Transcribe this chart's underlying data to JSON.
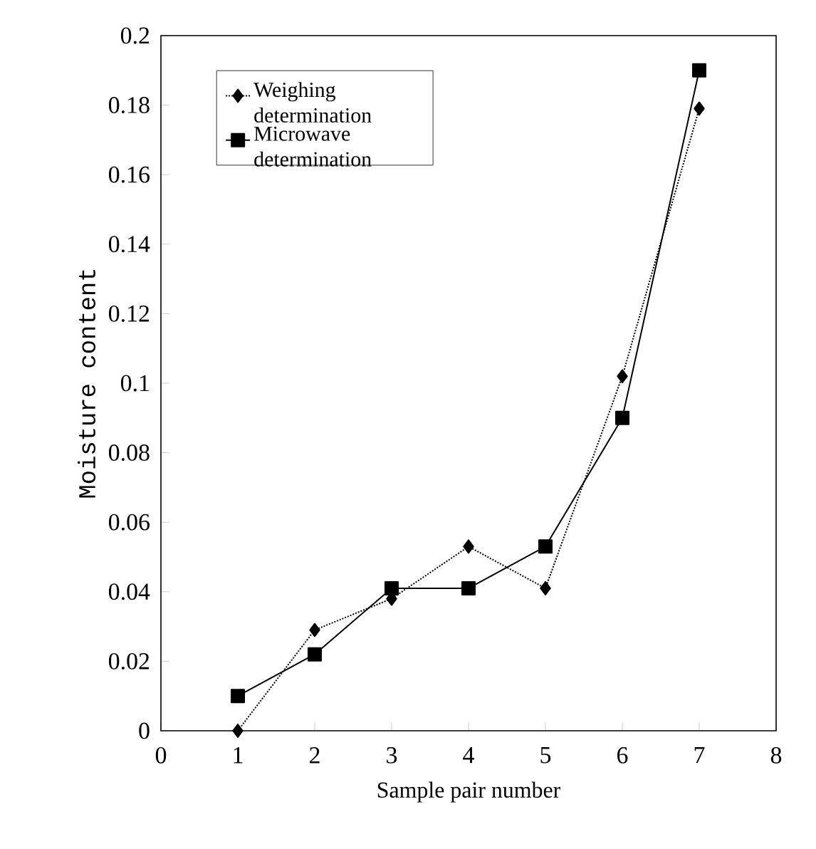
{
  "chart_data": {
    "type": "line",
    "xlabel": "Sample pair number",
    "ylabel": "Moisture content",
    "x": [
      1,
      2,
      3,
      4,
      5,
      6,
      7
    ],
    "series": [
      {
        "name": "Weighing determination",
        "color": "#000000",
        "marker": "diamond",
        "line_style": "dotted",
        "values": [
          0,
          0.029,
          0.038,
          0.053,
          0.041,
          0.102,
          0.179
        ]
      },
      {
        "name": "Microwave determination",
        "color": "#000000",
        "marker": "square",
        "line_style": "solid",
        "values": [
          0.01,
          0.022,
          0.041,
          0.041,
          0.053,
          0.09,
          0.19
        ]
      }
    ],
    "xlim": [
      0,
      8
    ],
    "xticks": [
      0,
      1,
      2,
      3,
      4,
      5,
      6,
      7,
      8
    ],
    "ylim": [
      0,
      0.2
    ],
    "yticks": [
      0,
      0.02,
      0.04,
      0.06,
      0.08,
      0.1,
      0.12,
      0.14,
      0.16,
      0.18,
      0.2
    ],
    "grid": false,
    "legend": "top left"
  }
}
